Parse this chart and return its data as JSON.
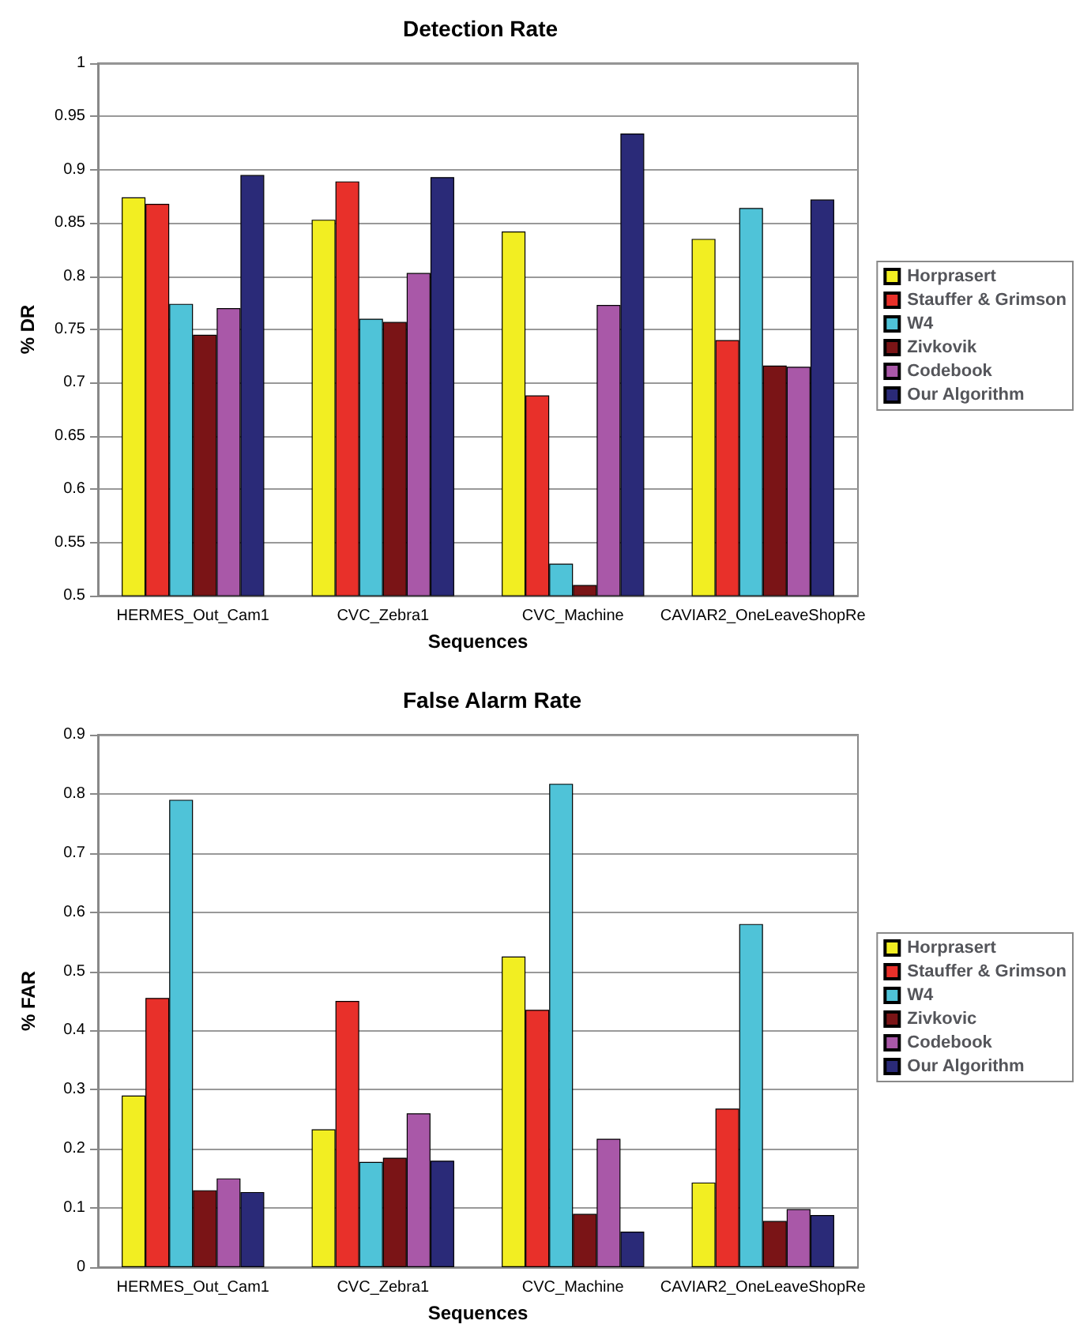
{
  "chart_data": [
    {
      "type": "bar",
      "title": "Detection Rate",
      "xlabel": "Sequences",
      "ylabel": "% DR",
      "categories": [
        "HERMES_Out_Cam1",
        "CVC_Zebra1",
        "CVC_Machine",
        "CAVIAR2_OneLeaveShopRe"
      ],
      "series": [
        {
          "name": "Horprasert",
          "color": "#f2ee22",
          "values": [
            0.874,
            0.853,
            0.842,
            0.835
          ]
        },
        {
          "name": "Stauffer & Grimson",
          "color": "#e8302a",
          "values": [
            0.868,
            0.889,
            0.688,
            0.74
          ]
        },
        {
          "name": "W4",
          "color": "#4fc3d8",
          "values": [
            0.774,
            0.76,
            0.53,
            0.864
          ]
        },
        {
          "name": "Zivkovik",
          "color": "#7a1416",
          "values": [
            0.745,
            0.757,
            0.51,
            0.716
          ]
        },
        {
          "name": "Codebook",
          "color": "#a958a8",
          "values": [
            0.77,
            0.803,
            0.773,
            0.715
          ]
        },
        {
          "name": "Our Algorithm",
          "color": "#2a2a78",
          "values": [
            0.895,
            0.893,
            0.934,
            0.872
          ]
        }
      ],
      "ylim": [
        0.5,
        1
      ],
      "yticks": [
        0.5,
        0.55,
        0.6,
        0.65,
        0.7,
        0.75,
        0.8,
        0.85,
        0.9,
        0.95,
        1
      ],
      "grid": "y",
      "legend": "right"
    },
    {
      "type": "bar",
      "title": "False Alarm Rate",
      "xlabel": "Sequences",
      "ylabel": "% FAR",
      "categories": [
        "HERMES_Out_Cam1",
        "CVC_Zebra1",
        "CVC_Machine",
        "CAVIAR2_OneLeaveShopRe"
      ],
      "series": [
        {
          "name": "Horprasert",
          "color": "#f2ee22",
          "values": [
            0.29,
            0.233,
            0.525,
            0.143
          ]
        },
        {
          "name": "Stauffer & Grimson",
          "color": "#e8302a",
          "values": [
            0.455,
            0.45,
            0.435,
            0.268
          ]
        },
        {
          "name": "W4",
          "color": "#4fc3d8",
          "values": [
            0.79,
            0.178,
            0.817,
            0.58
          ]
        },
        {
          "name": "Zivkovic",
          "color": "#7a1416",
          "values": [
            0.13,
            0.185,
            0.09,
            0.078
          ]
        },
        {
          "name": "Codebook",
          "color": "#a958a8",
          "values": [
            0.15,
            0.26,
            0.217,
            0.098
          ]
        },
        {
          "name": "Our Algorithm",
          "color": "#2a2a78",
          "values": [
            0.127,
            0.18,
            0.06,
            0.088
          ]
        }
      ],
      "ylim": [
        0,
        0.9
      ],
      "yticks": [
        0,
        0.1,
        0.2,
        0.3,
        0.4,
        0.5,
        0.6,
        0.7,
        0.8,
        0.9
      ],
      "grid": "y",
      "legend": "right"
    }
  ]
}
